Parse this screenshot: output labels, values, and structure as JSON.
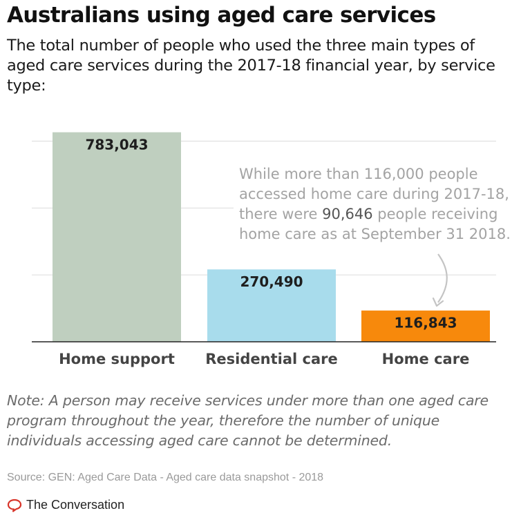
{
  "title": "Australians using aged care services",
  "subtitle": "The total number of people who used the three main types of aged care services during the 2017-18 financial year, by service type:",
  "chart_data": {
    "type": "bar",
    "categories": [
      "Home support",
      "Residential care",
      "Home care"
    ],
    "values": [
      783043,
      270490,
      116843
    ],
    "value_labels": [
      "783,043",
      "270,490",
      "116,843"
    ],
    "colors": [
      "#bfcfbf",
      "#a8dcec",
      "#f7890c"
    ],
    "ylim": [
      0,
      800000
    ],
    "grid": true,
    "annotation": {
      "lines": [
        "While more than 116,000 people",
        "accessed home care during 2017-18,",
        "there were 90,646 people receiving",
        "home care as at September 31 2018."
      ],
      "points_to": "Home care"
    }
  },
  "note": "Note: A person may receive services under more than one aged care program throughout the year, therefore the number of unique individuals accessing aged care cannot be determined.",
  "source": "Source: GEN: Aged Care Data - Aged care data snapshot - 2018",
  "brand": {
    "name": "The Conversation",
    "logo_icon": "conversation-bubble-icon",
    "accent": "#d8352a"
  }
}
